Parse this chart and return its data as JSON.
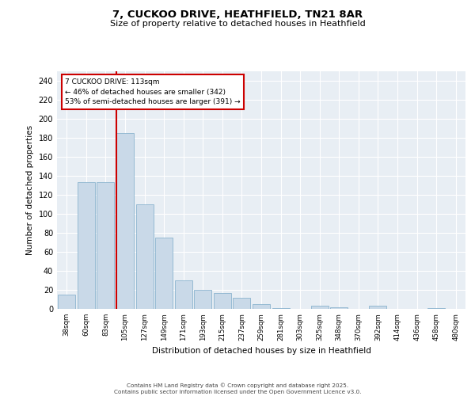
{
  "title_line1": "7, CUCKOO DRIVE, HEATHFIELD, TN21 8AR",
  "title_line2": "Size of property relative to detached houses in Heathfield",
  "xlabel": "Distribution of detached houses by size in Heathfield",
  "ylabel": "Number of detached properties",
  "categories": [
    "38sqm",
    "60sqm",
    "83sqm",
    "105sqm",
    "127sqm",
    "149sqm",
    "171sqm",
    "193sqm",
    "215sqm",
    "237sqm",
    "259sqm",
    "281sqm",
    "303sqm",
    "325sqm",
    "348sqm",
    "370sqm",
    "392sqm",
    "414sqm",
    "436sqm",
    "458sqm",
    "480sqm"
  ],
  "values": [
    15,
    133,
    133,
    185,
    110,
    75,
    30,
    20,
    17,
    12,
    5,
    1,
    0,
    3,
    2,
    0,
    3,
    0,
    0,
    1,
    0
  ],
  "bar_color": "#c9d9e8",
  "bar_edge_color": "#7baac8",
  "background_color": "#e8eef4",
  "grid_color": "#ffffff",
  "annotation_text": "7 CUCKOO DRIVE: 113sqm\n← 46% of detached houses are smaller (342)\n53% of semi-detached houses are larger (391) →",
  "annotation_box_color": "#ffffff",
  "annotation_box_edge": "#cc0000",
  "red_line_color": "#cc0000",
  "footer_line1": "Contains HM Land Registry data © Crown copyright and database right 2025.",
  "footer_line2": "Contains public sector information licensed under the Open Government Licence v3.0.",
  "ylim": [
    0,
    250
  ],
  "yticks": [
    0,
    20,
    40,
    60,
    80,
    100,
    120,
    140,
    160,
    180,
    200,
    220,
    240
  ]
}
